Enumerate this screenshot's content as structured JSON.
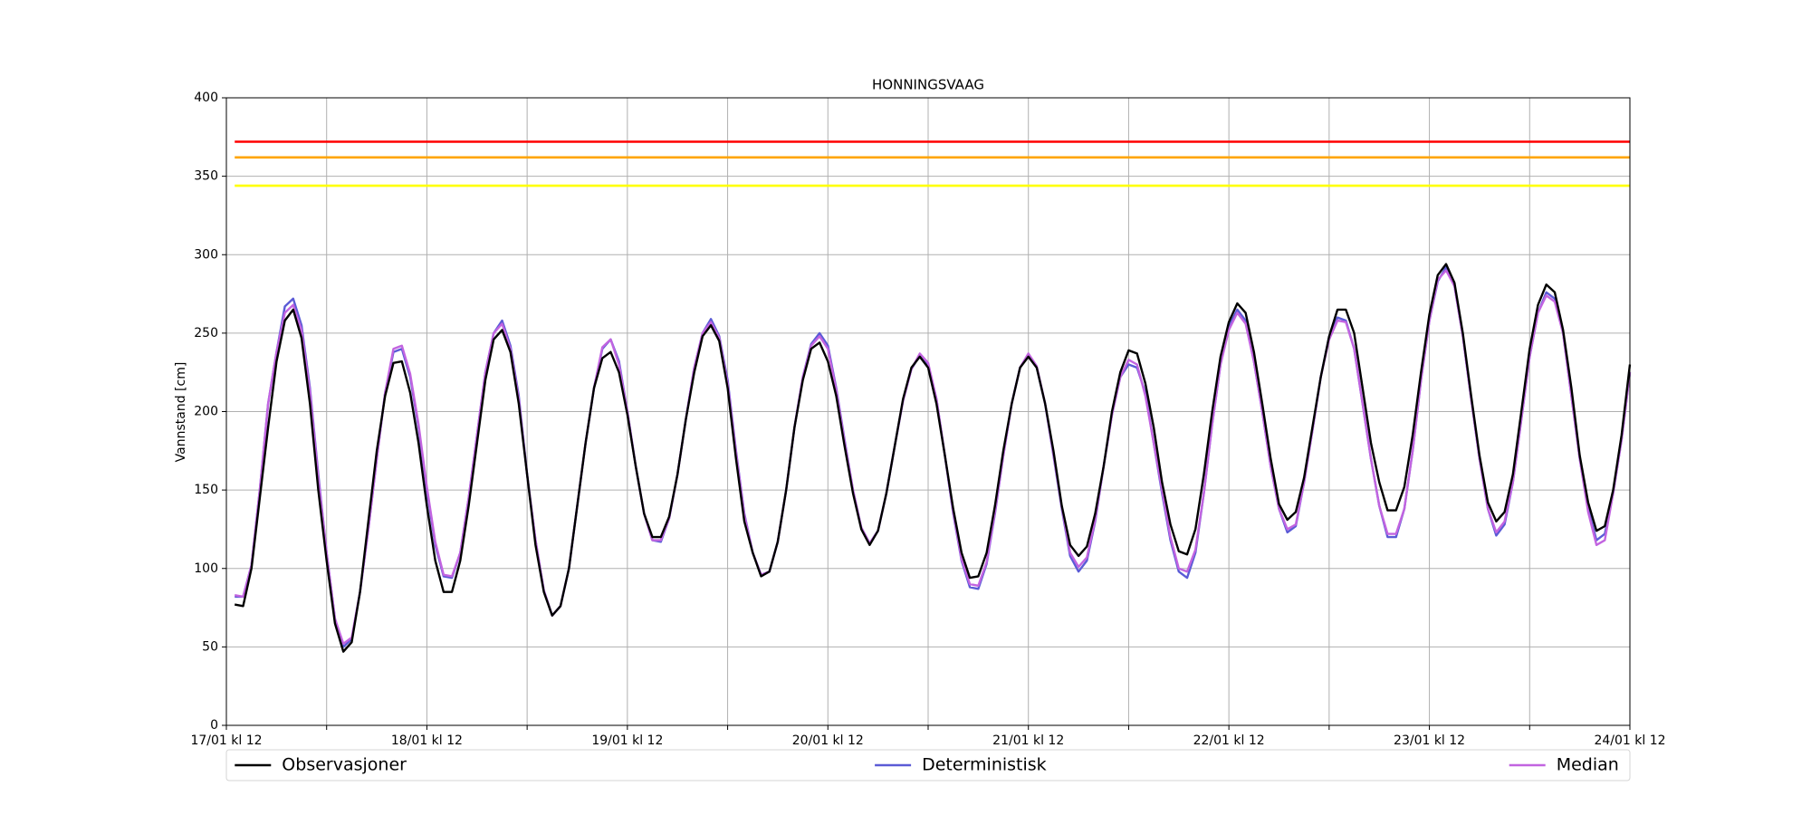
{
  "chart_data": {
    "type": "line",
    "title": "HONNINGSVAAG",
    "ylabel": "Vannstand [cm]",
    "xlim": [
      "17/01 kl 12",
      "24/01 kl 12"
    ],
    "xticks": [
      "17/01 kl 12",
      "18/01 kl 12",
      "19/01 kl 12",
      "20/01 kl 12",
      "21/01 kl 12",
      "22/01 kl 12",
      "23/01 kl 12",
      "24/01 kl 12"
    ],
    "xminor_ticks": [
      "18/01 kl 00",
      "19/01 kl 00",
      "20/01 kl 00",
      "21/01 kl 00",
      "22/01 kl 00",
      "23/01 kl 00",
      "24/01 kl 00"
    ],
    "ylim": [
      0,
      400
    ],
    "yticks": [
      0,
      50,
      100,
      150,
      200,
      250,
      300,
      350,
      400
    ],
    "grid": true,
    "legend": "lower center outside",
    "thresholds": [
      {
        "color": "#ff0000",
        "value": 372
      },
      {
        "color": "#ffa500",
        "value": 362
      },
      {
        "color": "#ffff00",
        "value": 344
      }
    ],
    "x": [
      "17/01 kl 13",
      "17/01 kl 14",
      "17/01 kl 15",
      "17/01 kl 16",
      "17/01 kl 17",
      "17/01 kl 18",
      "17/01 kl 19",
      "17/01 kl 20",
      "17/01 kl 21",
      "17/01 kl 22",
      "17/01 kl 23",
      "18/01 kl 00",
      "18/01 kl 01",
      "18/01 kl 02",
      "18/01 kl 03",
      "18/01 kl 04",
      "18/01 kl 05",
      "18/01 kl 06",
      "18/01 kl 07",
      "18/01 kl 08",
      "18/01 kl 09",
      "18/01 kl 10",
      "18/01 kl 11",
      "18/01 kl 12",
      "18/01 kl 13",
      "18/01 kl 14",
      "18/01 kl 15",
      "18/01 kl 16",
      "18/01 kl 17",
      "18/01 kl 18",
      "18/01 kl 19",
      "18/01 kl 20",
      "18/01 kl 21",
      "18/01 kl 22",
      "18/01 kl 23",
      "19/01 kl 00",
      "19/01 kl 01",
      "19/01 kl 02",
      "19/01 kl 03",
      "19/01 kl 04",
      "19/01 kl 05",
      "19/01 kl 06",
      "19/01 kl 07",
      "19/01 kl 08",
      "19/01 kl 09",
      "19/01 kl 10",
      "19/01 kl 11",
      "19/01 kl 12",
      "19/01 kl 13",
      "19/01 kl 14",
      "19/01 kl 15",
      "19/01 kl 16",
      "19/01 kl 17",
      "19/01 kl 18",
      "19/01 kl 19",
      "19/01 kl 20",
      "19/01 kl 21",
      "19/01 kl 22",
      "19/01 kl 23",
      "20/01 kl 00",
      "20/01 kl 01",
      "20/01 kl 02",
      "20/01 kl 03",
      "20/01 kl 04",
      "20/01 kl 05",
      "20/01 kl 06",
      "20/01 kl 07",
      "20/01 kl 08",
      "20/01 kl 09",
      "20/01 kl 10",
      "20/01 kl 11",
      "20/01 kl 12",
      "20/01 kl 13",
      "20/01 kl 14",
      "20/01 kl 15",
      "20/01 kl 16",
      "20/01 kl 17",
      "20/01 kl 18",
      "20/01 kl 19",
      "20/01 kl 20",
      "20/01 kl 21",
      "20/01 kl 22",
      "20/01 kl 23",
      "21/01 kl 00",
      "21/01 kl 01",
      "21/01 kl 02",
      "21/01 kl 03",
      "21/01 kl 04",
      "21/01 kl 05",
      "21/01 kl 06",
      "21/01 kl 07",
      "21/01 kl 08",
      "21/01 kl 09",
      "21/01 kl 10",
      "21/01 kl 11",
      "21/01 kl 12",
      "21/01 kl 13",
      "21/01 kl 14",
      "21/01 kl 15",
      "21/01 kl 16",
      "21/01 kl 17",
      "21/01 kl 18",
      "21/01 kl 19",
      "21/01 kl 20",
      "21/01 kl 21",
      "21/01 kl 22",
      "21/01 kl 23",
      "22/01 kl 00",
      "22/01 kl 01",
      "22/01 kl 02",
      "22/01 kl 03",
      "22/01 kl 04",
      "22/01 kl 05",
      "22/01 kl 06",
      "22/01 kl 07",
      "22/01 kl 08",
      "22/01 kl 09",
      "22/01 kl 10",
      "22/01 kl 11",
      "22/01 kl 12",
      "22/01 kl 13",
      "22/01 kl 14",
      "22/01 kl 15",
      "22/01 kl 16",
      "22/01 kl 17",
      "22/01 kl 18",
      "22/01 kl 19",
      "22/01 kl 20",
      "22/01 kl 21",
      "22/01 kl 22",
      "22/01 kl 23",
      "23/01 kl 00",
      "23/01 kl 01",
      "23/01 kl 02",
      "23/01 kl 03",
      "23/01 kl 04",
      "23/01 kl 05",
      "23/01 kl 06",
      "23/01 kl 07",
      "23/01 kl 08",
      "23/01 kl 09",
      "23/01 kl 10",
      "23/01 kl 11",
      "23/01 kl 12",
      "23/01 kl 13",
      "23/01 kl 14",
      "23/01 kl 15",
      "23/01 kl 16",
      "23/01 kl 17",
      "23/01 kl 18",
      "23/01 kl 19",
      "23/01 kl 20",
      "23/01 kl 21",
      "23/01 kl 22",
      "23/01 kl 23",
      "24/01 kl 00",
      "24/01 kl 01",
      "24/01 kl 02",
      "24/01 kl 03",
      "24/01 kl 04",
      "24/01 kl 05",
      "24/01 kl 06",
      "24/01 kl 07",
      "24/01 kl 08",
      "24/01 kl 09",
      "24/01 kl 10",
      "24/01 kl 11",
      "24/01 kl 12"
    ],
    "series": [
      {
        "name": "Observasjoner",
        "color": "#000000",
        "values": [
          77,
          76,
          100,
          145,
          190,
          232,
          258,
          265,
          247,
          205,
          150,
          105,
          65,
          47,
          53,
          85,
          130,
          175,
          210,
          231,
          232,
          212,
          180,
          140,
          105,
          85,
          85,
          105,
          140,
          180,
          220,
          246,
          252,
          238,
          205,
          160,
          115,
          85,
          70,
          76,
          100,
          140,
          180,
          215,
          234,
          238,
          225,
          198,
          165,
          135,
          120,
          120,
          133,
          160,
          195,
          225,
          248,
          255,
          245,
          215,
          170,
          130,
          110,
          95,
          98,
          117,
          150,
          190,
          220,
          240,
          244,
          232,
          210,
          178,
          148,
          125,
          115,
          124,
          148,
          178,
          208,
          228,
          235,
          228,
          205,
          172,
          138,
          110,
          94,
          95,
          110,
          140,
          175,
          205,
          228,
          235,
          228,
          205,
          175,
          140,
          115,
          108,
          114,
          135,
          165,
          200,
          225,
          239,
          237,
          218,
          190,
          155,
          128,
          111,
          109,
          125,
          160,
          200,
          235,
          257,
          269,
          263,
          238,
          205,
          170,
          141,
          131,
          136,
          158,
          190,
          222,
          248,
          265,
          265,
          250,
          215,
          180,
          155,
          137,
          137,
          152,
          185,
          225,
          262,
          287,
          294,
          282,
          250,
          210,
          172,
          142,
          130,
          136,
          160,
          200,
          240,
          268,
          281,
          276,
          252,
          215,
          172,
          142,
          124,
          127,
          150,
          185,
          230
        ]
      },
      {
        "name": "Deterministisk",
        "color": "#5b5bd6",
        "values": [
          82,
          82,
          102,
          150,
          205,
          238,
          267,
          272,
          255,
          215,
          160,
          110,
          68,
          50,
          55,
          85,
          125,
          170,
          212,
          238,
          240,
          222,
          190,
          150,
          115,
          95,
          94,
          110,
          145,
          185,
          225,
          250,
          258,
          242,
          210,
          160,
          118,
          86,
          70,
          76,
          100,
          140,
          180,
          215,
          240,
          246,
          232,
          200,
          165,
          135,
          118,
          117,
          132,
          160,
          195,
          228,
          250,
          259,
          248,
          220,
          175,
          135,
          110,
          96,
          98,
          117,
          150,
          190,
          222,
          243,
          250,
          242,
          215,
          182,
          150,
          126,
          116,
          124,
          148,
          178,
          207,
          227,
          236,
          230,
          208,
          172,
          135,
          105,
          88,
          87,
          103,
          135,
          172,
          205,
          228,
          236,
          228,
          205,
          172,
          138,
          108,
          98,
          105,
          130,
          165,
          198,
          222,
          230,
          228,
          212,
          180,
          148,
          118,
          98,
          94,
          110,
          148,
          192,
          230,
          254,
          265,
          258,
          232,
          200,
          165,
          138,
          123,
          127,
          155,
          188,
          222,
          248,
          260,
          258,
          240,
          205,
          170,
          140,
          120,
          120,
          138,
          175,
          220,
          258,
          283,
          292,
          280,
          248,
          208,
          170,
          138,
          121,
          128,
          155,
          195,
          235,
          263,
          276,
          272,
          250,
          210,
          170,
          138,
          118,
          122,
          148,
          182,
          225
        ]
      },
      {
        "name": "Median",
        "color": "#c264e0",
        "values": [
          83,
          82,
          102,
          150,
          205,
          238,
          263,
          268,
          252,
          213,
          158,
          110,
          68,
          52,
          56,
          85,
          125,
          170,
          212,
          240,
          242,
          224,
          192,
          152,
          117,
          96,
          95,
          110,
          145,
          185,
          225,
          250,
          256,
          240,
          208,
          160,
          118,
          86,
          70,
          76,
          100,
          140,
          180,
          215,
          241,
          246,
          230,
          200,
          165,
          135,
          118,
          118,
          132,
          160,
          195,
          228,
          250,
          257,
          247,
          218,
          174,
          134,
          110,
          96,
          98,
          117,
          150,
          190,
          222,
          242,
          248,
          240,
          214,
          181,
          150,
          126,
          116,
          124,
          148,
          178,
          207,
          227,
          237,
          231,
          208,
          172,
          136,
          106,
          90,
          89,
          104,
          136,
          172,
          205,
          228,
          237,
          229,
          205,
          173,
          139,
          110,
          101,
          107,
          131,
          165,
          198,
          222,
          233,
          230,
          210,
          180,
          150,
          120,
          100,
          98,
          112,
          148,
          192,
          230,
          252,
          263,
          256,
          232,
          200,
          165,
          138,
          125,
          128,
          155,
          188,
          222,
          246,
          258,
          257,
          240,
          205,
          170,
          140,
          122,
          122,
          138,
          175,
          220,
          258,
          284,
          290,
          280,
          248,
          208,
          170,
          138,
          123,
          130,
          155,
          195,
          235,
          263,
          274,
          270,
          250,
          210,
          170,
          136,
          115,
          118,
          148,
          182,
          225
        ]
      }
    ]
  }
}
